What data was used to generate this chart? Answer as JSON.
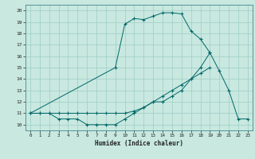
{
  "xlabel": "Humidex (Indice chaleur)",
  "bg_color": "#c8e8e0",
  "grid_color": "#a0ccC4",
  "line_color": "#006868",
  "xlim": [
    -0.5,
    23.5
  ],
  "ylim": [
    9.5,
    20.5
  ],
  "xticks": [
    0,
    1,
    2,
    3,
    4,
    5,
    6,
    7,
    8,
    9,
    10,
    11,
    12,
    13,
    14,
    15,
    16,
    17,
    18,
    19,
    20,
    21,
    22,
    23
  ],
  "yticks": [
    10,
    11,
    12,
    13,
    14,
    15,
    16,
    17,
    18,
    19,
    20
  ],
  "line1_x": [
    0,
    1,
    2,
    3,
    4,
    5,
    6,
    7,
    8,
    9,
    10,
    11,
    12,
    13,
    14,
    15,
    16,
    17,
    18,
    19
  ],
  "line1_y": [
    11,
    11,
    11,
    10.5,
    10.5,
    10.5,
    10,
    10,
    10,
    10,
    10.5,
    11,
    11.5,
    12,
    12,
    12.5,
    13,
    14,
    15,
    16.3
  ],
  "line2_x": [
    0,
    1,
    2,
    3,
    4,
    5,
    6,
    7,
    8,
    9,
    10,
    11,
    12,
    13,
    14,
    15,
    16,
    17,
    18,
    19
  ],
  "line2_y": [
    11,
    11,
    11,
    11,
    11,
    11,
    11,
    11,
    11,
    11,
    11,
    11.2,
    11.5,
    12,
    12.5,
    13,
    13.5,
    14,
    14.5,
    15
  ],
  "line3_x": [
    0,
    9,
    10,
    11,
    12,
    13,
    14,
    15,
    16,
    17,
    18,
    19,
    20,
    21,
    22,
    23
  ],
  "line3_y": [
    11,
    15,
    18.8,
    19.3,
    19.2,
    19.5,
    19.8,
    19.8,
    19.7,
    18.2,
    17.5,
    16.3,
    14.7,
    13.0,
    10.5,
    10.5
  ]
}
